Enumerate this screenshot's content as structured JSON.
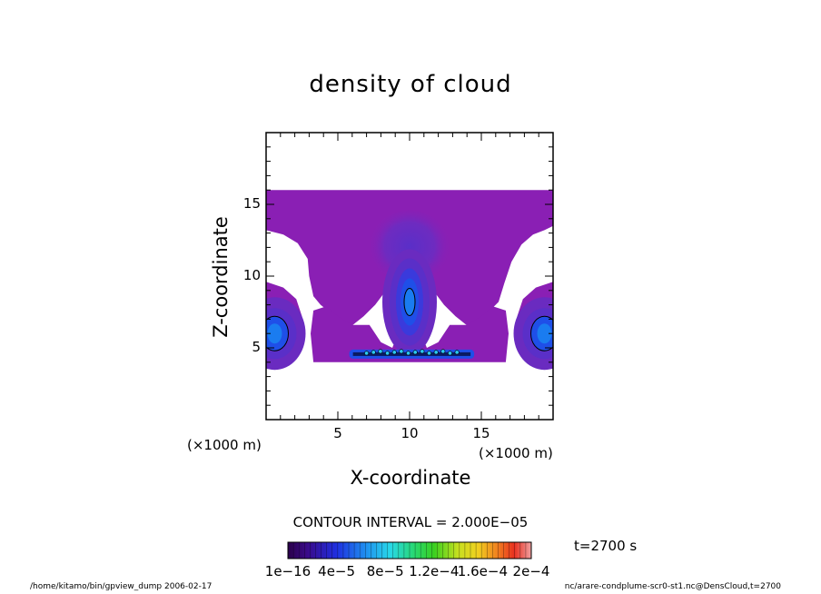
{
  "chart_data": {
    "type": "heatmap",
    "title": "density of cloud",
    "xlabel": "X-coordinate",
    "ylabel": "Z-coordinate",
    "x_unit_label": "(×1000 m)",
    "y_unit_label": "(×1000 m)",
    "xlim": [
      0,
      20
    ],
    "ylim": [
      0,
      20
    ],
    "x_ticks": [
      "5",
      "10",
      "15"
    ],
    "y_ticks": [
      "5",
      "10",
      "15"
    ],
    "contour_interval_label": "CONTOUR INTERVAL = 2.000E−05",
    "time_label": "t=2700 s",
    "colorbar": {
      "range": [
        1e-16,
        0.0002
      ],
      "labels": [
        "1e−16",
        "4e−5",
        "8e−5",
        "1.2e−4",
        "1.6e−4",
        "2e−4"
      ]
    },
    "features": {
      "cloud_top_z": 15.9,
      "cloud_base_z": 4.0,
      "central_max": {
        "x": 10,
        "z": 8.2,
        "value": 6e-05
      },
      "side_max": [
        {
          "x": 0.6,
          "z": 6.0,
          "value": 5e-05
        },
        {
          "x": 19.4,
          "z": 6.0,
          "value": 5e-05
        }
      ],
      "base_band": {
        "x": [
          5.8,
          14.5
        ],
        "z": 4.5,
        "value": 3e-05
      }
    }
  },
  "footer": {
    "left": "/home/kitamo/bin/gpview_dump  2006-02-17",
    "right": "nc/arare-condplume-scr0-st1.nc@DensCloud,t=2700"
  },
  "colors": {
    "cloud_low": "#8a1fb4",
    "cloud_mid": "#5a2fc8",
    "cloud_high": "#1f4fe8",
    "core": "#1a7cf0"
  }
}
